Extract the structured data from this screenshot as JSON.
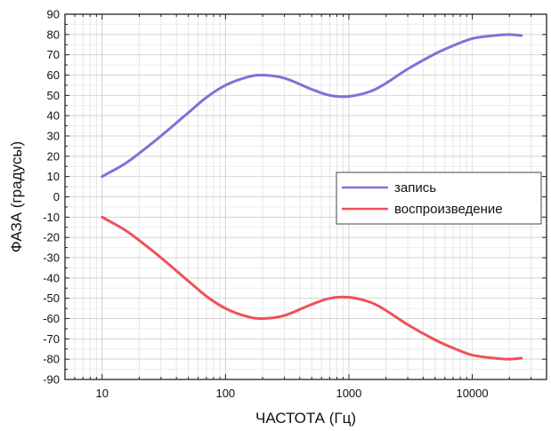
{
  "chart_data": {
    "type": "line",
    "title": "",
    "xlabel": "ЧАСТОТА (Гц)",
    "ylabel": "ФАЗА (градусы)",
    "x_scale": "log",
    "xlim": [
      5,
      40000
    ],
    "ylim": [
      -90,
      90
    ],
    "x_ticks": [
      10,
      100,
      1000,
      10000
    ],
    "x_tick_labels": [
      "10",
      "100",
      "1000",
      "10000"
    ],
    "y_ticks": [
      90,
      80,
      70,
      60,
      50,
      40,
      30,
      20,
      10,
      0,
      -10,
      -20,
      -30,
      -40,
      -50,
      -60,
      -70,
      -80,
      -90
    ],
    "y_tick_labels": [
      "90",
      "80",
      "70",
      "60",
      "50",
      "40",
      "30",
      "20",
      "10",
      "0",
      "-10",
      "-20",
      "-30",
      "-40",
      "-50",
      "-60",
      "-70",
      "-80",
      "-90"
    ],
    "grid": true,
    "legend_position": "middle-right",
    "series": [
      {
        "name": "запись",
        "color": "#7b73d9",
        "x": [
          10,
          15,
          20,
          30,
          50,
          70,
          100,
          150,
          200,
          300,
          500,
          700,
          1000,
          1500,
          2000,
          3000,
          5000,
          7000,
          10000,
          15000,
          20000,
          25000
        ],
        "values": [
          10,
          16,
          21.5,
          30,
          41.5,
          49,
          55,
          59,
          60,
          58.5,
          53,
          50,
          49.5,
          52,
          56,
          63,
          70.5,
          74.5,
          78,
          79.5,
          80,
          79.5
        ]
      },
      {
        "name": "воспроизведение",
        "color": "#f0505a",
        "x": [
          10,
          15,
          20,
          30,
          50,
          70,
          100,
          150,
          200,
          300,
          500,
          700,
          1000,
          1500,
          2000,
          3000,
          5000,
          7000,
          10000,
          15000,
          20000,
          25000
        ],
        "values": [
          -10,
          -16,
          -21.5,
          -30,
          -41.5,
          -49,
          -55,
          -59,
          -60,
          -58.5,
          -53,
          -50,
          -49.5,
          -52,
          -56,
          -63,
          -70.5,
          -74.5,
          -78,
          -79.5,
          -80,
          -79.5
        ]
      }
    ]
  }
}
